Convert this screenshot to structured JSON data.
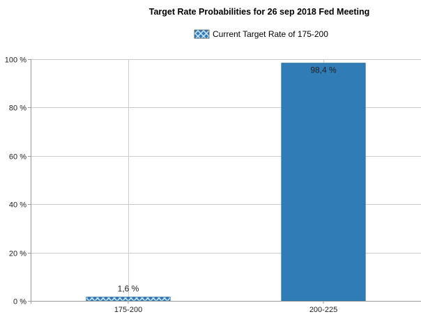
{
  "chart_data": {
    "type": "bar",
    "title": "Target Rate Probabilities for 26 sep 2018 Fed Meeting",
    "xlabel": "",
    "ylabel": "",
    "categories": [
      "175-200",
      "200-225"
    ],
    "values": [
      1.6,
      98.4
    ],
    "data_labels": [
      "1,6 %",
      "98,4 %"
    ],
    "ylim": [
      0,
      100
    ],
    "y_ticks": [
      0,
      20,
      40,
      60,
      80,
      100
    ],
    "y_tick_labels": [
      "0 %",
      "20 %",
      "40 %",
      "60 %",
      "80 %",
      "100 %"
    ],
    "legend": {
      "placement": "top-center",
      "entries": [
        {
          "label": "Current Target Rate of 175-200",
          "pattern": "diagonal-crosshatch"
        }
      ]
    },
    "highlighted_category": "175-200",
    "grid": true,
    "colors": {
      "bar": "#2f7cb6",
      "bar_pattern_line": "#c9e3f3",
      "grid": "#cccccc",
      "axis": "#999999"
    }
  }
}
